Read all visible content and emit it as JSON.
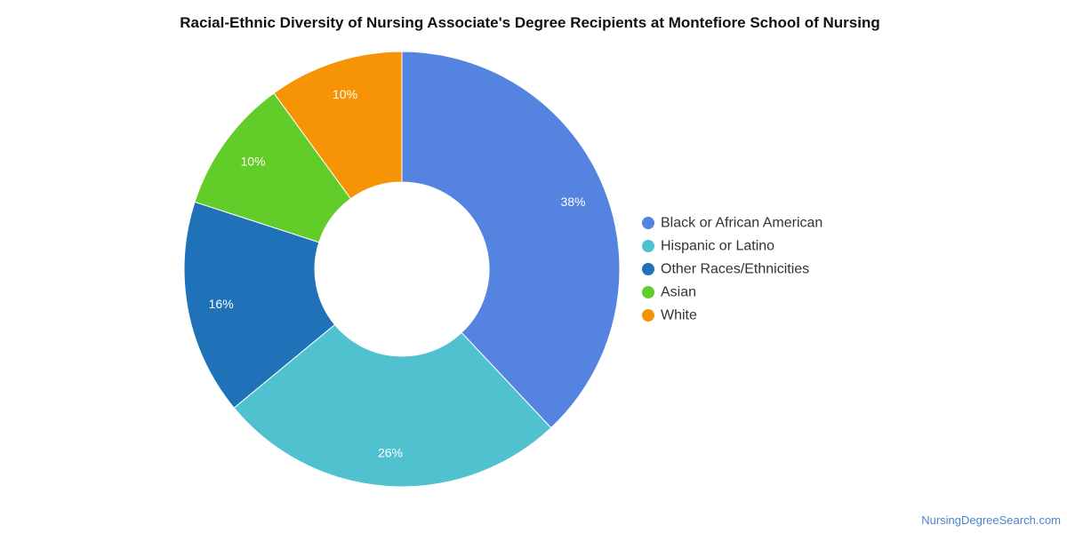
{
  "chart_data": {
    "type": "pie",
    "title": "Racial-Ethnic Diversity of Nursing Associate's Degree Recipients at Montefiore School of Nursing",
    "donut": true,
    "legend_position": "right",
    "slices": [
      {
        "label": "Black or African American",
        "value": 38,
        "display": "38%",
        "color": "#5484e0"
      },
      {
        "label": "Hispanic or Latino",
        "value": 26,
        "display": "26%",
        "color": "#4fc1cf"
      },
      {
        "label": "Other Races/Ethnicities",
        "value": 16,
        "display": "16%",
        "color": "#1f72b8"
      },
      {
        "label": "Asian",
        "value": 10,
        "display": "10%",
        "color": "#62cc28"
      },
      {
        "label": "White",
        "value": 10,
        "display": "10%",
        "color": "#f79406"
      }
    ]
  },
  "source": {
    "text": "NursingDegreeSearch.com",
    "color": "#4a86c8"
  }
}
